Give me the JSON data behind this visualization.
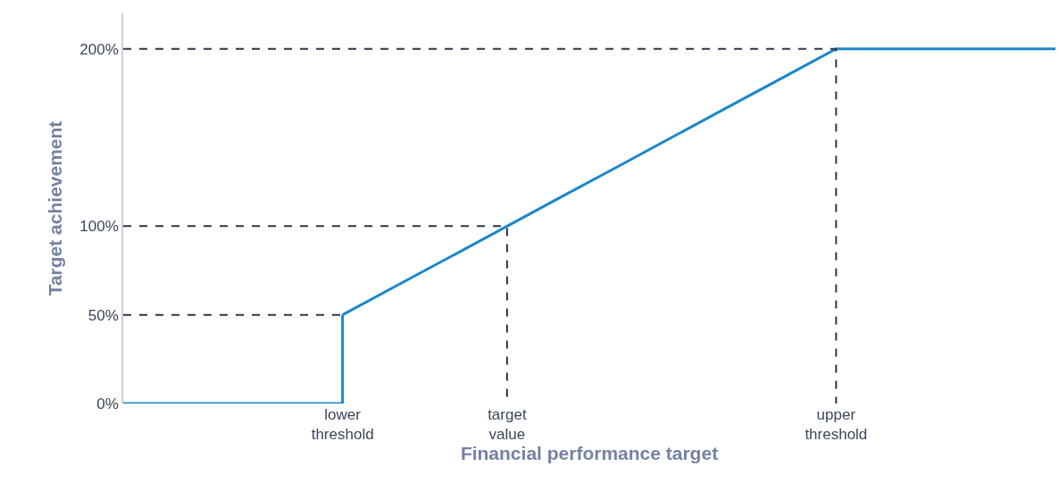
{
  "chart_data": {
    "type": "line",
    "xlabel": "Financial performance target",
    "ylabel": "Target achievement",
    "categories": [
      null,
      null,
      null,
      null,
      "lower\nthreshold",
      null,
      null,
      "target\nvalue",
      null,
      null,
      null,
      null,
      null,
      "upper\nthreshold",
      null,
      null,
      null,
      null
    ],
    "ylim": [
      0,
      220
    ],
    "yticks": [
      {
        "value": 0,
        "label": "0%"
      },
      {
        "value": 50,
        "label": "50%"
      },
      {
        "value": 100,
        "label": "100%"
      },
      {
        "value": 200,
        "label": "200%"
      }
    ],
    "marker": "none",
    "series": [
      {
        "type": "step",
        "color": "#1a87c9",
        "line_style": "solid",
        "values": [
          0,
          0,
          0,
          0,
          50,
          null,
          null,
          null,
          null,
          null,
          null,
          null,
          null,
          null,
          null,
          null,
          null,
          null
        ]
      },
      {
        "color": "#1a87c9",
        "line_style": "solid",
        "values": [
          null,
          null,
          null,
          null,
          50,
          66.7,
          83.3,
          100,
          116.7,
          133.3,
          150,
          166.7,
          183.3,
          200,
          200,
          200,
          200,
          200
        ]
      },
      {
        "color": "#2d3648",
        "line_style": "dashed",
        "values": [
          50,
          50,
          50,
          50,
          50,
          null,
          null,
          null,
          null,
          null,
          null,
          null,
          null,
          null,
          null,
          null,
          null,
          null
        ]
      },
      {
        "type": "step",
        "color": "#2d3648",
        "line_style": "dashed",
        "values": [
          100,
          100,
          100,
          100,
          100,
          100,
          100,
          0,
          null,
          null,
          null,
          null,
          null,
          null,
          null,
          null,
          null,
          null
        ]
      },
      {
        "type": "step",
        "color": "#2d3648",
        "line_style": "dashed",
        "values": [
          200,
          200,
          200,
          200,
          200,
          200,
          200,
          200,
          200,
          200,
          200,
          200,
          200,
          0,
          null,
          null,
          null,
          null
        ]
      }
    ]
  }
}
